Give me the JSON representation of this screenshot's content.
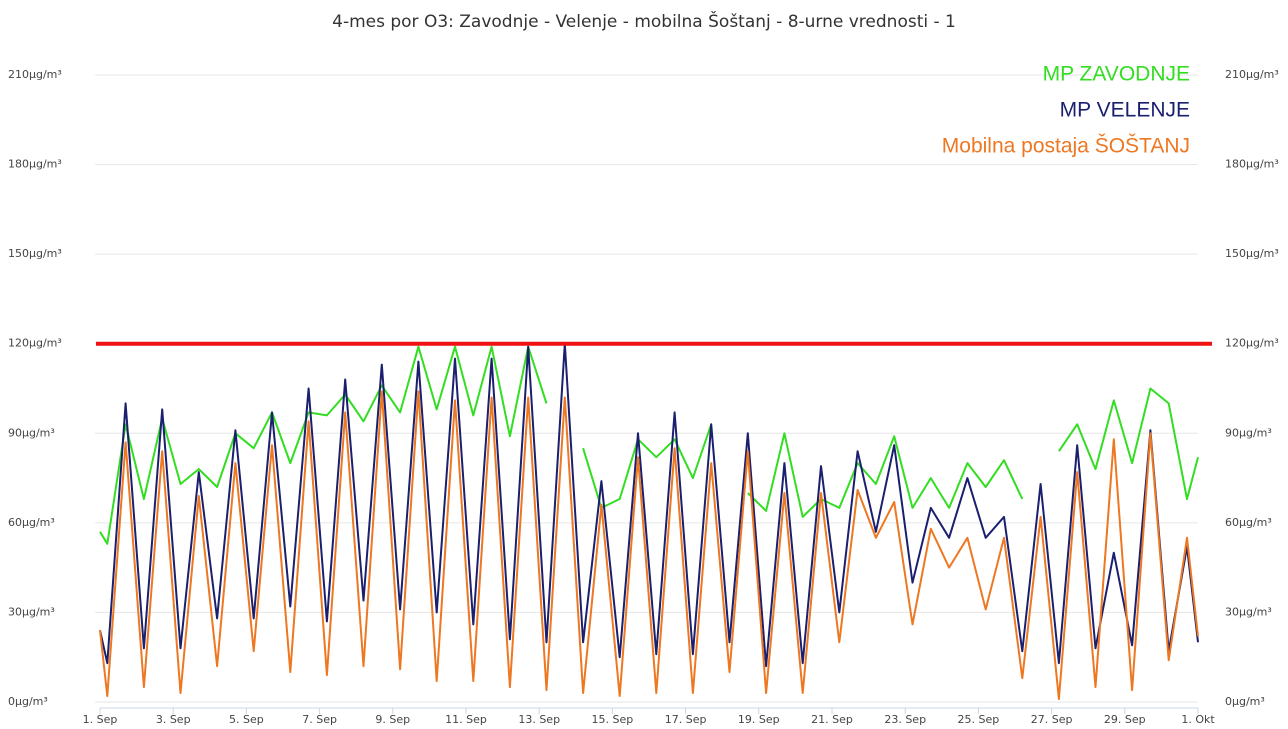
{
  "chart_data": {
    "type": "line",
    "title": "4-mes por O3: Zavodnje - Velenje - mobilna Šoštanj - 8-urne vrednosti - 1",
    "x": [
      0,
      0.2,
      0.7,
      1.2,
      1.7,
      2.2,
      2.7,
      3.2,
      3.7,
      4.2,
      4.7,
      5.2,
      5.7,
      6.2,
      6.7,
      7.2,
      7.7,
      8.2,
      8.7,
      9.2,
      9.7,
      10.2,
      10.7,
      11.2,
      11.7,
      12.2,
      12.7,
      13.2,
      13.7,
      14.2,
      14.7,
      15.2,
      15.7,
      16.2,
      16.7,
      17.2,
      17.7,
      18.2,
      18.7,
      19.2,
      19.7,
      20.2,
      20.7,
      21.2,
      21.7,
      22.2,
      22.7,
      23.2,
      23.7,
      24.2,
      24.7,
      25.2,
      25.7,
      26.2,
      26.7,
      27.2,
      27.7,
      28.2,
      28.7,
      29.2,
      29.7,
      30
    ],
    "series": [
      {
        "name": "MP ZAVODNJE",
        "color": "#33dd22",
        "values": [
          57,
          53,
          93,
          68,
          95,
          73,
          78,
          72,
          90,
          85,
          97,
          80,
          97,
          96,
          103,
          94,
          106,
          97,
          119,
          98,
          119,
          96,
          119,
          89,
          119,
          100,
          null,
          85,
          65,
          68,
          88,
          82,
          88,
          75,
          93,
          null,
          70,
          64,
          90,
          62,
          68,
          65,
          80,
          73,
          89,
          65,
          75,
          65,
          80,
          72,
          81,
          68,
          null,
          84,
          93,
          78,
          101,
          80,
          105,
          100,
          68,
          82
        ]
      },
      {
        "name": "MP VELENJE",
        "color": "#1a1f6e",
        "values": [
          24,
          13,
          100,
          18,
          98,
          18,
          77,
          28,
          91,
          28,
          97,
          32,
          105,
          27,
          108,
          34,
          113,
          31,
          114,
          30,
          115,
          26,
          115,
          21,
          119,
          20,
          120,
          20,
          74,
          15,
          90,
          16,
          97,
          16,
          93,
          20,
          90,
          12,
          80,
          13,
          79,
          30,
          84,
          57,
          86,
          40,
          65,
          55,
          75,
          55,
          62,
          17,
          73,
          13,
          86,
          18,
          50,
          19,
          91,
          17,
          52,
          20
        ]
      },
      {
        "name": "Mobilna  postaja ŠOŠTANJ",
        "color": "#ee7722",
        "values": [
          24,
          2,
          87,
          5,
          84,
          3,
          69,
          12,
          80,
          17,
          86,
          10,
          94,
          9,
          97,
          12,
          104,
          11,
          104,
          7,
          101,
          7,
          102,
          5,
          102,
          4,
          102,
          3,
          66,
          2,
          82,
          3,
          85,
          3,
          80,
          10,
          84,
          3,
          70,
          3,
          70,
          20,
          71,
          55,
          67,
          26,
          58,
          45,
          55,
          31,
          55,
          8,
          62,
          1,
          77,
          5,
          88,
          4,
          90,
          14,
          55,
          22
        ]
      }
    ],
    "threshold": {
      "value": 120,
      "color": "#ee1111"
    },
    "xlim": [
      0,
      30
    ],
    "xticks": [
      {
        "value": 0,
        "label": "1. Sep"
      },
      {
        "value": 2,
        "label": "3. Sep"
      },
      {
        "value": 4,
        "label": "5. Sep"
      },
      {
        "value": 6,
        "label": "7. Sep"
      },
      {
        "value": 8,
        "label": "9. Sep"
      },
      {
        "value": 10,
        "label": "11. Sep"
      },
      {
        "value": 12,
        "label": "13. Sep"
      },
      {
        "value": 14,
        "label": "15. Sep"
      },
      {
        "value": 16,
        "label": "17. Sep"
      },
      {
        "value": 18,
        "label": "19. Sep"
      },
      {
        "value": 20,
        "label": "21. Sep"
      },
      {
        "value": 22,
        "label": "23. Sep"
      },
      {
        "value": 24,
        "label": "25. Sep"
      },
      {
        "value": 26,
        "label": "27. Sep"
      },
      {
        "value": 28,
        "label": "29. Sep"
      },
      {
        "value": 30,
        "label": "1. Okt"
      }
    ],
    "ylim": [
      0,
      210
    ],
    "yticks": [
      {
        "value": 0,
        "label": "0µg/m³"
      },
      {
        "value": 30,
        "label": "30µg/m³"
      },
      {
        "value": 60,
        "label": "60µg/m³"
      },
      {
        "value": 90,
        "label": "90µg/m³"
      },
      {
        "value": 120,
        "label": "120µg/m³"
      },
      {
        "value": 150,
        "label": "150µg/m³"
      },
      {
        "value": 180,
        "label": "180µg/m³"
      },
      {
        "value": 210,
        "label": "210µg/m³"
      }
    ],
    "y2lim": [
      0,
      210
    ],
    "y2ticks": [
      {
        "value": 0,
        "label": "0µg/m³"
      },
      {
        "value": 30,
        "label": "30µg/m³"
      },
      {
        "value": 60,
        "label": "60µg/m³"
      },
      {
        "value": 90,
        "label": "90µg/m³"
      },
      {
        "value": 120,
        "label": "120µg/m³"
      },
      {
        "value": 150,
        "label": "150µg/m³"
      },
      {
        "value": 180,
        "label": "180µg/m³"
      },
      {
        "value": 210,
        "label": "210µg/m³"
      }
    ],
    "y2color": "#33dd22",
    "grid": true
  }
}
